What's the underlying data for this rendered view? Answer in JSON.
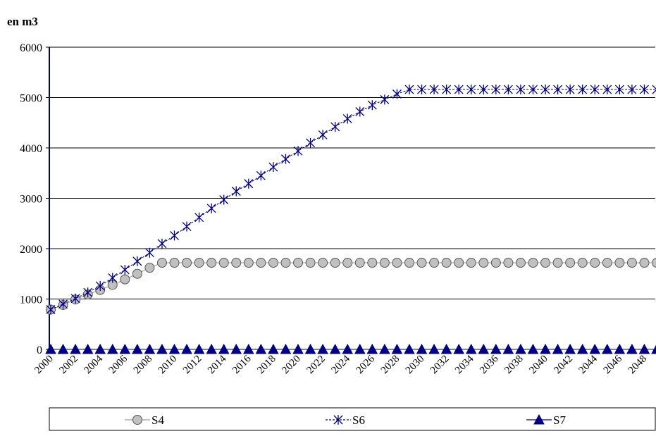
{
  "chart_data": {
    "type": "line",
    "ylabel": "en m3",
    "ylim": [
      0,
      6000
    ],
    "yticks": [
      0,
      1000,
      2000,
      3000,
      4000,
      5000,
      6000
    ],
    "x": [
      2000,
      2001,
      2002,
      2003,
      2004,
      2005,
      2006,
      2007,
      2008,
      2009,
      2010,
      2011,
      2012,
      2013,
      2014,
      2015,
      2016,
      2017,
      2018,
      2019,
      2020,
      2021,
      2022,
      2023,
      2024,
      2025,
      2026,
      2027,
      2028,
      2029,
      2030,
      2031,
      2032,
      2033,
      2034,
      2035,
      2036,
      2037,
      2038,
      2039,
      2040,
      2041,
      2042,
      2043,
      2044,
      2045,
      2046,
      2047,
      2048,
      2049
    ],
    "xticks": [
      2000,
      2002,
      2004,
      2006,
      2008,
      2010,
      2012,
      2014,
      2016,
      2018,
      2020,
      2022,
      2024,
      2026,
      2028,
      2030,
      2032,
      2034,
      2036,
      2038,
      2040,
      2042,
      2044,
      2046,
      2048
    ],
    "grid": "horizontal",
    "legend_position": "bottom",
    "series": [
      {
        "name": "S4",
        "marker": "circle",
        "color": "#999999",
        "values": [
          790,
          880,
          990,
          1090,
          1180,
          1280,
          1390,
          1500,
          1620,
          1720,
          1720,
          1720,
          1720,
          1720,
          1720,
          1720,
          1720,
          1720,
          1720,
          1720,
          1720,
          1720,
          1720,
          1720,
          1720,
          1720,
          1720,
          1720,
          1720,
          1720,
          1720,
          1720,
          1720,
          1720,
          1720,
          1720,
          1720,
          1720,
          1720,
          1720,
          1720,
          1720,
          1720,
          1720,
          1720,
          1720,
          1720,
          1720,
          1720,
          1720
        ]
      },
      {
        "name": "S6",
        "marker": "asterisk",
        "color": "#000080",
        "values": [
          790,
          900,
          1010,
          1130,
          1260,
          1420,
          1580,
          1750,
          1920,
          2100,
          2260,
          2440,
          2620,
          2800,
          2970,
          3140,
          3290,
          3450,
          3620,
          3780,
          3940,
          4100,
          4260,
          4420,
          4580,
          4720,
          4850,
          4960,
          5070,
          5160,
          5160,
          5160,
          5160,
          5160,
          5160,
          5160,
          5160,
          5160,
          5160,
          5160,
          5160,
          5160,
          5160,
          5160,
          5160,
          5160,
          5160,
          5160,
          5160,
          5160
        ]
      },
      {
        "name": "S7",
        "marker": "triangle",
        "color": "#000080",
        "values": [
          0,
          0,
          0,
          0,
          0,
          0,
          0,
          0,
          0,
          0,
          0,
          0,
          0,
          0,
          0,
          0,
          0,
          0,
          0,
          0,
          0,
          0,
          0,
          0,
          0,
          0,
          0,
          0,
          0,
          0,
          0,
          0,
          0,
          0,
          0,
          0,
          0,
          0,
          0,
          0,
          0,
          0,
          0,
          0,
          0,
          0,
          0,
          0,
          0,
          0
        ]
      }
    ]
  }
}
